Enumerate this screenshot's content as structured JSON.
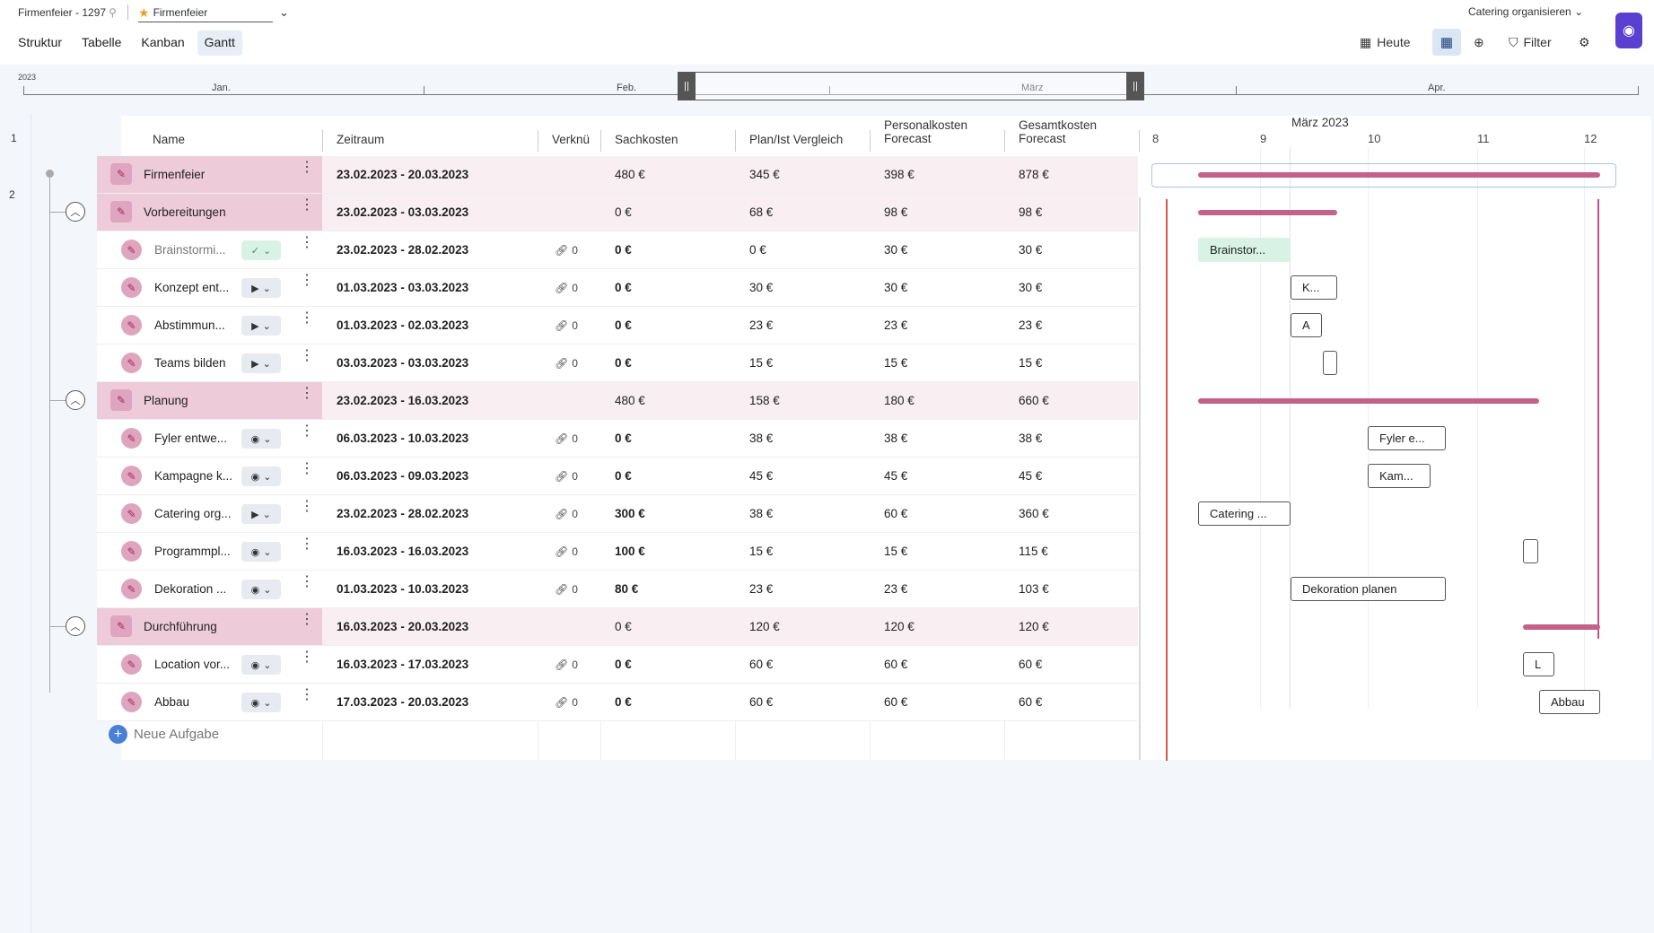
{
  "header": {
    "crumb": "Firmenfeier - 1297",
    "project": "Firmenfeier",
    "views": [
      "Struktur",
      "Tabelle",
      "Kanban",
      "Gantt"
    ],
    "active_view": "Gantt",
    "right_select": "Catering organisieren",
    "today": "Heute",
    "filter": "Filter"
  },
  "timeline": {
    "year": "2023",
    "months": [
      "Jan.",
      "Feb.",
      "März",
      "Apr."
    ],
    "handle": "||"
  },
  "row_numbers": [
    "1",
    "2"
  ],
  "columns": {
    "name": "Name",
    "zeitraum": "Zeitraum",
    "verkn": "Verknü",
    "sachkosten": "Sachkosten",
    "planist": "Plan/Ist Vergleich",
    "personal": "Personalkosten Forecast",
    "gesamt": "Gesamtkosten Forecast"
  },
  "rows": [
    {
      "name": "Firmenfeier",
      "zeitraum": "23.02.2023 - 20.03.2023",
      "links": "",
      "sach": "480 €",
      "plan": "345 €",
      "pers": "398 €",
      "ges": "878 €"
    },
    {
      "name": "Vorbereitungen",
      "zeitraum": "23.02.2023 - 03.03.2023",
      "links": "",
      "sach": "0 €",
      "plan": "68 €",
      "pers": "98 €",
      "ges": "98 €"
    },
    {
      "name": "Brainstormi...",
      "zeitraum": "23.02.2023 - 28.02.2023",
      "links": "0",
      "sach": "0 €",
      "plan": "0 €",
      "pers": "30 €",
      "ges": "30 €"
    },
    {
      "name": "Konzept ent...",
      "zeitraum": "01.03.2023 - 03.03.2023",
      "links": "0",
      "sach": "0 €",
      "plan": "30 €",
      "pers": "30 €",
      "ges": "30 €"
    },
    {
      "name": "Abstimmun...",
      "zeitraum": "01.03.2023 - 02.03.2023",
      "links": "0",
      "sach": "0 €",
      "plan": "23 €",
      "pers": "23 €",
      "ges": "23 €"
    },
    {
      "name": "Teams bilden",
      "zeitraum": "03.03.2023 - 03.03.2023",
      "links": "0",
      "sach": "0 €",
      "plan": "15 €",
      "pers": "15 €",
      "ges": "15 €"
    },
    {
      "name": "Planung",
      "zeitraum": "23.02.2023 - 16.03.2023",
      "links": "",
      "sach": "480 €",
      "plan": "158 €",
      "pers": "180 €",
      "ges": "660 €"
    },
    {
      "name": "Fyler entwe...",
      "zeitraum": "06.03.2023 - 10.03.2023",
      "links": "0",
      "sach": "0 €",
      "plan": "38 €",
      "pers": "38 €",
      "ges": "38 €"
    },
    {
      "name": "Kampagne k...",
      "zeitraum": "06.03.2023 - 09.03.2023",
      "links": "0",
      "sach": "0 €",
      "plan": "45 €",
      "pers": "45 €",
      "ges": "45 €"
    },
    {
      "name": "Catering org...",
      "zeitraum": "23.02.2023 - 28.02.2023",
      "links": "0",
      "sach": "300 €",
      "plan": "38 €",
      "pers": "60 €",
      "ges": "360 €"
    },
    {
      "name": "Programmpl...",
      "zeitraum": "16.03.2023 - 16.03.2023",
      "links": "0",
      "sach": "100 €",
      "plan": "15 €",
      "pers": "15 €",
      "ges": "115 €"
    },
    {
      "name": "Dekoration ...",
      "zeitraum": "01.03.2023 - 10.03.2023",
      "links": "0",
      "sach": "80 €",
      "plan": "23 €",
      "pers": "23 €",
      "ges": "103 €"
    },
    {
      "name": "Durchführung",
      "zeitraum": "16.03.2023 - 20.03.2023",
      "links": "",
      "sach": "0 €",
      "plan": "120 €",
      "pers": "120 €",
      "ges": "120 €"
    },
    {
      "name": "Location vor...",
      "zeitraum": "16.03.2023 - 17.03.2023",
      "links": "0",
      "sach": "0 €",
      "plan": "60 €",
      "pers": "60 €",
      "ges": "60 €"
    },
    {
      "name": "Abbau",
      "zeitraum": "17.03.2023 - 20.03.2023",
      "links": "0",
      "sach": "0 €",
      "plan": "60 €",
      "pers": "60 €",
      "ges": "60 €"
    }
  ],
  "new_task": "Neue Aufgabe",
  "gantt": {
    "month": "März 2023",
    "days": [
      "8",
      "9",
      "10",
      "11",
      "12"
    ],
    "labels": {
      "brainstorming": "Brainstor...",
      "konzept": "K...",
      "abstimmung": "A",
      "fyler": "Fyler e...",
      "kampagne": "Kam...",
      "catering": "Catering ...",
      "dekoration": "Dekoration planen",
      "location": "L",
      "abbau": "Abbau"
    }
  },
  "colors": {
    "accent": "#c4618b",
    "group_bg": "#f9eef2",
    "today": "#d9534f",
    "brand": "#5a3fd0"
  }
}
